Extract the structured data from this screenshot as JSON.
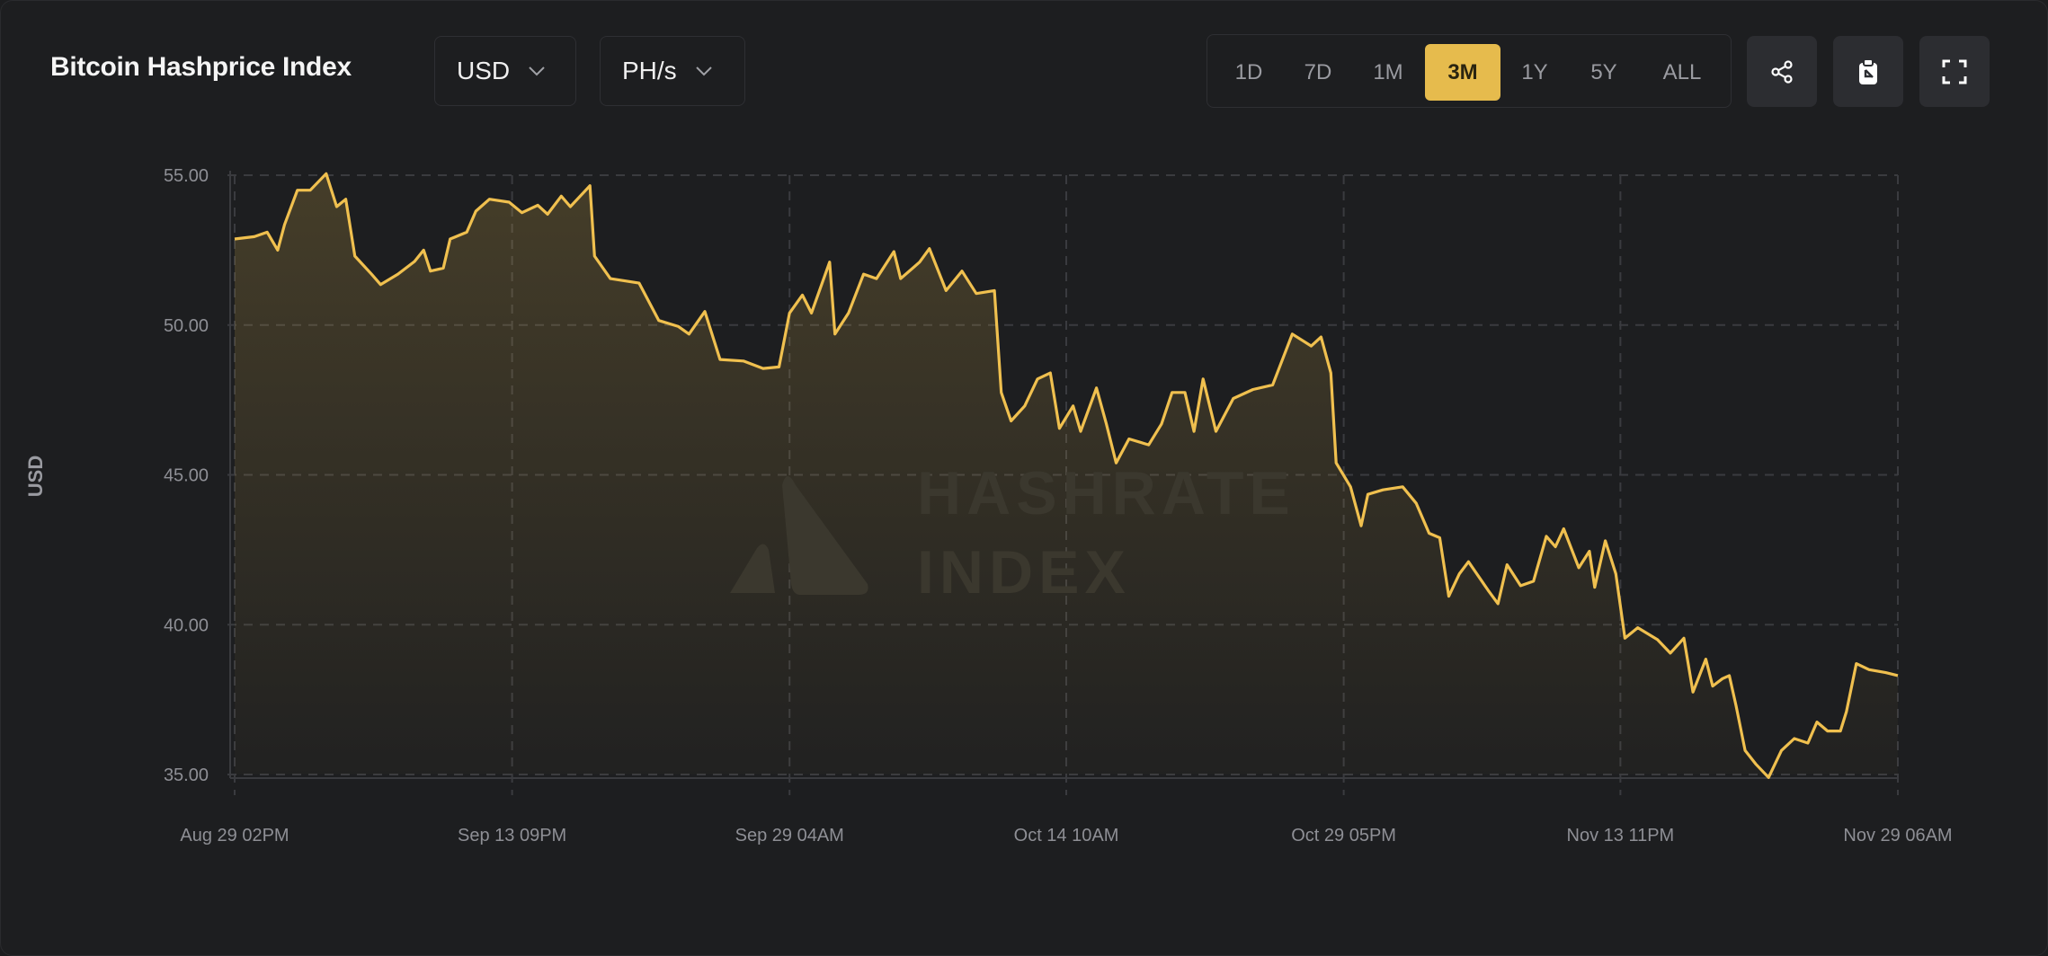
{
  "header": {
    "title": "Bitcoin Hashprice Index",
    "currency_dropdown": "USD",
    "unit_dropdown": "PH/s",
    "ranges": [
      "1D",
      "7D",
      "1M",
      "3M",
      "1Y",
      "5Y",
      "ALL"
    ],
    "active_range": "3M",
    "icons": [
      "share-icon",
      "clipboard-icon",
      "fullscreen-icon"
    ]
  },
  "watermark": {
    "line1": "HASHRATE",
    "line2": "INDEX"
  },
  "colors": {
    "accent": "#e6bb4d",
    "line": "#f0c04f",
    "background": "#1d1e20"
  },
  "chart_data": {
    "type": "area",
    "title": "",
    "xlabel": "",
    "ylabel": "USD",
    "ylim": [
      35,
      55
    ],
    "yticks": [
      "35.00",
      "40.00",
      "45.00",
      "50.00",
      "55.00"
    ],
    "xticks": [
      "Aug 29 02PM",
      "Sep 13 09PM",
      "Sep 29 04AM",
      "Oct 14 10AM",
      "Oct 29 05PM",
      "Nov 13 11PM",
      "Nov 29 06AM"
    ],
    "grid": true,
    "legend": "none",
    "series": [
      {
        "points": [
          [
            "Aug 29 14:00",
            52.87
          ],
          [
            "Aug 30 16:00",
            52.95
          ],
          [
            "Aug 31 09:00",
            53.1
          ],
          [
            "Aug 31 23:00",
            52.5
          ],
          [
            "Sep 1 08:00",
            53.35
          ],
          [
            "Sep 2 01:00",
            54.5
          ],
          [
            "Sep 2 18:00",
            54.5
          ],
          [
            "Sep 3 15:00",
            55.05
          ],
          [
            "Sep 4 05:00",
            53.95
          ],
          [
            "Sep 4 17:00",
            54.2
          ],
          [
            "Sep 5 05:00",
            52.3
          ],
          [
            "Sep 6 03:00",
            51.7
          ],
          [
            "Sep 6 15:00",
            51.35
          ],
          [
            "Sep 7 14:00",
            51.7
          ],
          [
            "Sep 8 12:00",
            52.12
          ],
          [
            "Sep 9 00:00",
            52.5
          ],
          [
            "Sep 9 09:00",
            51.8
          ],
          [
            "Sep 10 02:00",
            51.9
          ],
          [
            "Sep 10 11:00",
            52.87
          ],
          [
            "Sep 11 09:00",
            53.1
          ],
          [
            "Sep 11 21:00",
            53.8
          ],
          [
            "Sep 12 15:00",
            54.2
          ],
          [
            "Sep 13 17:00",
            54.1
          ],
          [
            "Sep 14 10:00",
            53.75
          ],
          [
            "Sep 15 07:00",
            54.0
          ],
          [
            "Sep 15 20:00",
            53.7
          ],
          [
            "Sep 16 14:00",
            54.3
          ],
          [
            "Sep 17 02:00",
            53.95
          ],
          [
            "Sep 18 04:00",
            54.65
          ],
          [
            "Sep 18 10:00",
            52.3
          ],
          [
            "Sep 19 07:00",
            51.55
          ],
          [
            "Sep 20 21:00",
            51.4
          ],
          [
            "Sep 21 23:00",
            50.15
          ],
          [
            "Sep 23 01:00",
            49.95
          ],
          [
            "Sep 23 15:00",
            49.7
          ],
          [
            "Sep 24 12:00",
            50.45
          ],
          [
            "Sep 25 08:00",
            48.85
          ],
          [
            "Sep 26 15:00",
            48.8
          ],
          [
            "Sep 27 17:00",
            48.55
          ],
          [
            "Sep 28 14:00",
            48.6
          ],
          [
            "Sep 29 04:00",
            50.4
          ],
          [
            "Sep 29 21:00",
            51.0
          ],
          [
            "Sep 30 09:00",
            50.4
          ],
          [
            "Oct 1 09:00",
            52.1
          ],
          [
            "Oct 1 16:00",
            49.7
          ],
          [
            "Oct 2 10:00",
            50.4
          ],
          [
            "Oct 3 06:00",
            51.7
          ],
          [
            "Oct 3 23:00",
            51.55
          ],
          [
            "Oct 4 22:00",
            52.45
          ],
          [
            "Oct 5 07:00",
            51.55
          ],
          [
            "Oct 6 08:00",
            52.1
          ],
          [
            "Oct 6 21:00",
            52.55
          ],
          [
            "Oct 7 19:00",
            51.15
          ],
          [
            "Oct 8 16:00",
            51.8
          ],
          [
            "Oct 9 11:00",
            51.05
          ],
          [
            "Oct 10 11:00",
            51.15
          ],
          [
            "Oct 10 20:00",
            47.75
          ],
          [
            "Oct 11 09:00",
            46.8
          ],
          [
            "Oct 12 03:00",
            47.3
          ],
          [
            "Oct 12 20:00",
            48.2
          ],
          [
            "Oct 13 13:00",
            48.4
          ],
          [
            "Oct 14 01:00",
            46.55
          ],
          [
            "Oct 14 19:00",
            47.3
          ],
          [
            "Oct 15 05:00",
            46.45
          ],
          [
            "Oct 16 02:00",
            47.9
          ],
          [
            "Oct 16 15:00",
            46.7
          ],
          [
            "Oct 17 04:00",
            45.4
          ],
          [
            "Oct 17 21:00",
            46.2
          ],
          [
            "Oct 18 23:00",
            46.0
          ],
          [
            "Oct 19 16:00",
            46.7
          ],
          [
            "Oct 20 06:00",
            47.75
          ],
          [
            "Oct 20 23:00",
            47.75
          ],
          [
            "Oct 21 11:00",
            46.45
          ],
          [
            "Oct 21 23:00",
            48.2
          ],
          [
            "Oct 22 16:00",
            46.45
          ],
          [
            "Oct 23 15:00",
            47.55
          ],
          [
            "Oct 24 17:00",
            47.85
          ],
          [
            "Oct 25 19:00",
            48.0
          ],
          [
            "Oct 26 21:00",
            49.7
          ],
          [
            "Oct 27 22:00",
            49.3
          ],
          [
            "Oct 28 11:00",
            49.6
          ],
          [
            "Oct 29 00:00",
            48.4
          ],
          [
            "Oct 29 07:00",
            45.4
          ],
          [
            "Oct 30 02:00",
            44.6
          ],
          [
            "Oct 30 16:00",
            43.3
          ],
          [
            "Oct 31 01:00",
            44.35
          ],
          [
            "Oct 31 21:00",
            44.5
          ],
          [
            "Nov 1 23:00",
            44.6
          ],
          [
            "Nov 2 17:00",
            44.05
          ],
          [
            "Nov 3 10:00",
            43.05
          ],
          [
            "Nov 4 00:00",
            42.9
          ],
          [
            "Nov 4 12:00",
            40.95
          ],
          [
            "Nov 5 02:00",
            41.7
          ],
          [
            "Nov 5 14:00",
            42.1
          ],
          [
            "Nov 6 16:00",
            41.15
          ],
          [
            "Nov 7 05:00",
            40.7
          ],
          [
            "Nov 7 17:00",
            42.0
          ],
          [
            "Nov 8 11:00",
            41.3
          ],
          [
            "Nov 9 04:00",
            41.45
          ],
          [
            "Nov 9 21:00",
            42.95
          ],
          [
            "Nov 10 09:00",
            42.6
          ],
          [
            "Nov 10 20:00",
            43.2
          ],
          [
            "Nov 11 16:00",
            41.9
          ],
          [
            "Nov 12 06:00",
            42.45
          ],
          [
            "Nov 12 13:00",
            41.25
          ],
          [
            "Nov 13 03:00",
            42.8
          ],
          [
            "Nov 13 17:00",
            41.7
          ],
          [
            "Nov 14 05:00",
            39.55
          ],
          [
            "Nov 14 22:00",
            39.9
          ],
          [
            "Nov 16 00:00",
            39.5
          ],
          [
            "Nov 16 17:00",
            39.05
          ],
          [
            "Nov 17 11:00",
            39.55
          ],
          [
            "Nov 17 23:00",
            37.75
          ],
          [
            "Nov 18 16:00",
            38.85
          ],
          [
            "Nov 19 01:00",
            37.95
          ],
          [
            "Nov 19 14:00",
            38.2
          ],
          [
            "Nov 19 23:00",
            38.3
          ],
          [
            "Nov 20 08:00",
            37.3
          ],
          [
            "Nov 20 20:00",
            35.8
          ],
          [
            "Nov 21 10:00",
            35.35
          ],
          [
            "Nov 22 03:00",
            34.9
          ],
          [
            "Nov 22 20:00",
            35.8
          ],
          [
            "Nov 23 13:00",
            36.2
          ],
          [
            "Nov 24 07:00",
            36.05
          ],
          [
            "Nov 24 19:00",
            36.75
          ],
          [
            "Nov 25 09:00",
            36.45
          ],
          [
            "Nov 26 02:00",
            36.45
          ],
          [
            "Nov 26 10:00",
            37.1
          ],
          [
            "Nov 26 23:00",
            38.7
          ],
          [
            "Nov 27 16:00",
            38.5
          ],
          [
            "Nov 28 14:00",
            38.4
          ],
          [
            "Nov 29 06:00",
            38.3
          ]
        ]
      }
    ]
  }
}
